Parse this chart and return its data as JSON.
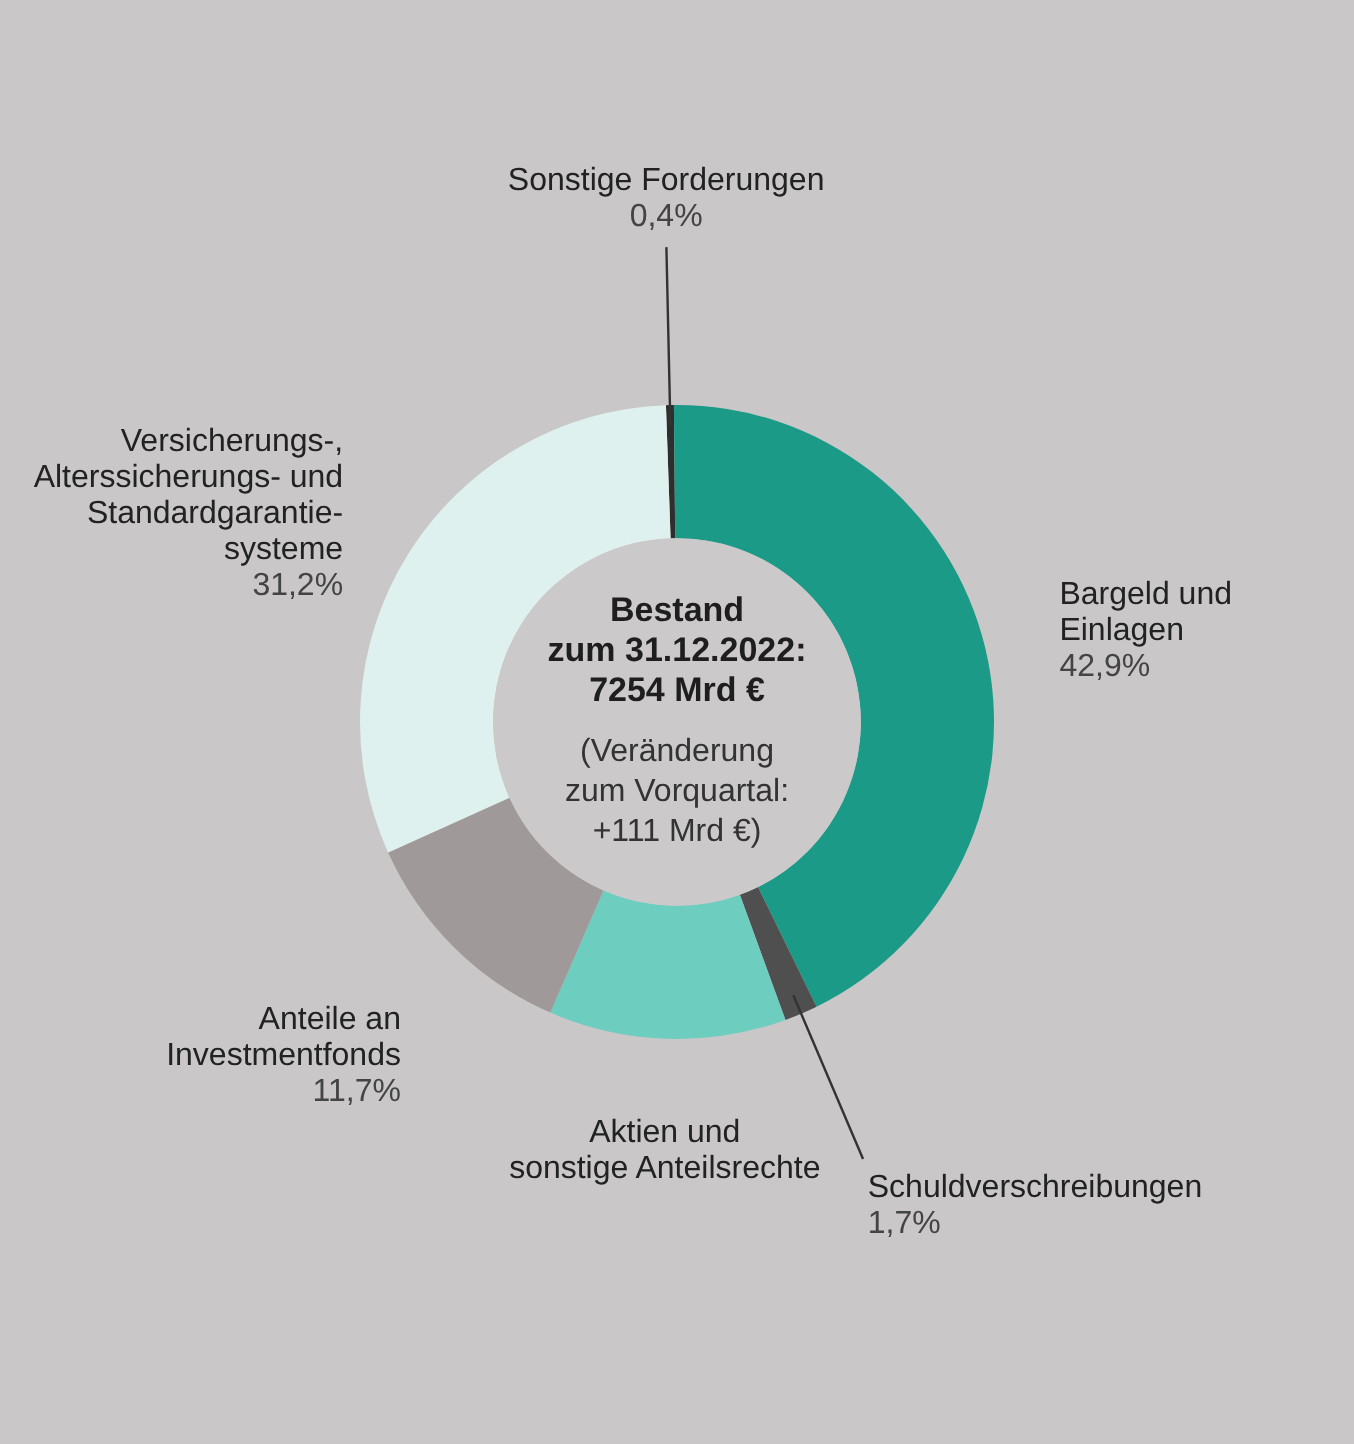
{
  "chart_data": {
    "type": "donut",
    "title": "Bestand\nzum 31.12.2022:\n7254 Mrd €",
    "subtitle": "(Veränderung\nzum Vorquartal:\n+111 Mrd €)",
    "categories": [
      "Sonstige Forderungen",
      "Bargeld und\nEinlagen",
      "Schuldverschreibungen",
      "Aktien und\nsonstige Anteilsrechte",
      "Anteile an\nInvestmentfonds",
      "Versicherungs-,\nAlterssicherungs- und\nStandardgarantie-\nsysteme"
    ],
    "values": [
      0.4,
      42.9,
      1.7,
      12.1,
      11.7,
      31.2
    ],
    "value_labels": [
      "0,4%",
      "42,9%",
      "1,7%",
      null,
      "11,7%",
      "31,2%"
    ],
    "colors": [
      "#2e2e2e",
      "#1b9a88",
      "#4f4f4f",
      "#6dcdbf",
      "#9f9a99",
      "#def1ee"
    ],
    "legend": false
  }
}
